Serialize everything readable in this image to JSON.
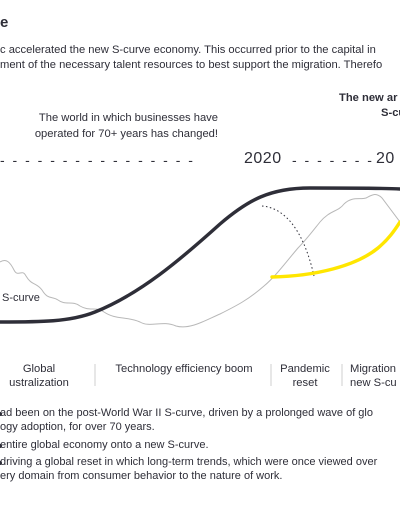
{
  "header": {
    "title_fragment": "e",
    "intro_line1": "c accelerated the new S-curve economy. This occurred prior to the capital in",
    "intro_line2": "ment of the necessary talent resources to best support the migration. Therefo"
  },
  "callouts": {
    "left_line1": "The world in which businesses have",
    "left_line2": "operated for 70+ years has changed!",
    "right_line1": "The new ar",
    "right_line2": "S-cu"
  },
  "timeline": {
    "dashes_left": "- - - - - - - - - - - - - - - -",
    "year_2020": "2020",
    "dashes_mid": "- - - - - - -",
    "year_next": "20"
  },
  "curve_label": "S-curve",
  "phases": [
    {
      "line1": "Global",
      "line2": "ustralization"
    },
    {
      "line1": "Technology efficiency boom",
      "line2": ""
    },
    {
      "line1": "Pandemic",
      "line2": "reset"
    },
    {
      "line1": "Migration",
      "line2": "new S-cu"
    }
  ],
  "footnotes": {
    "f1_line1": "ad been on the post-World War II S-curve, driven by a prolonged wave of glo",
    "f1_line2": "ogy adoption, for over 70 years.",
    "f2_line1": "entire global economy onto a new S-curve.",
    "f3_line1": "driving a global reset in which long-term trends, which were once viewed over",
    "f3_line2": "ery domain from consumer behavior to the nature of work."
  },
  "colors": {
    "ink": "#2e2e38",
    "accent": "#ffe600",
    "terrain": "#b8b8b8",
    "rule": "#cfcfcf"
  }
}
